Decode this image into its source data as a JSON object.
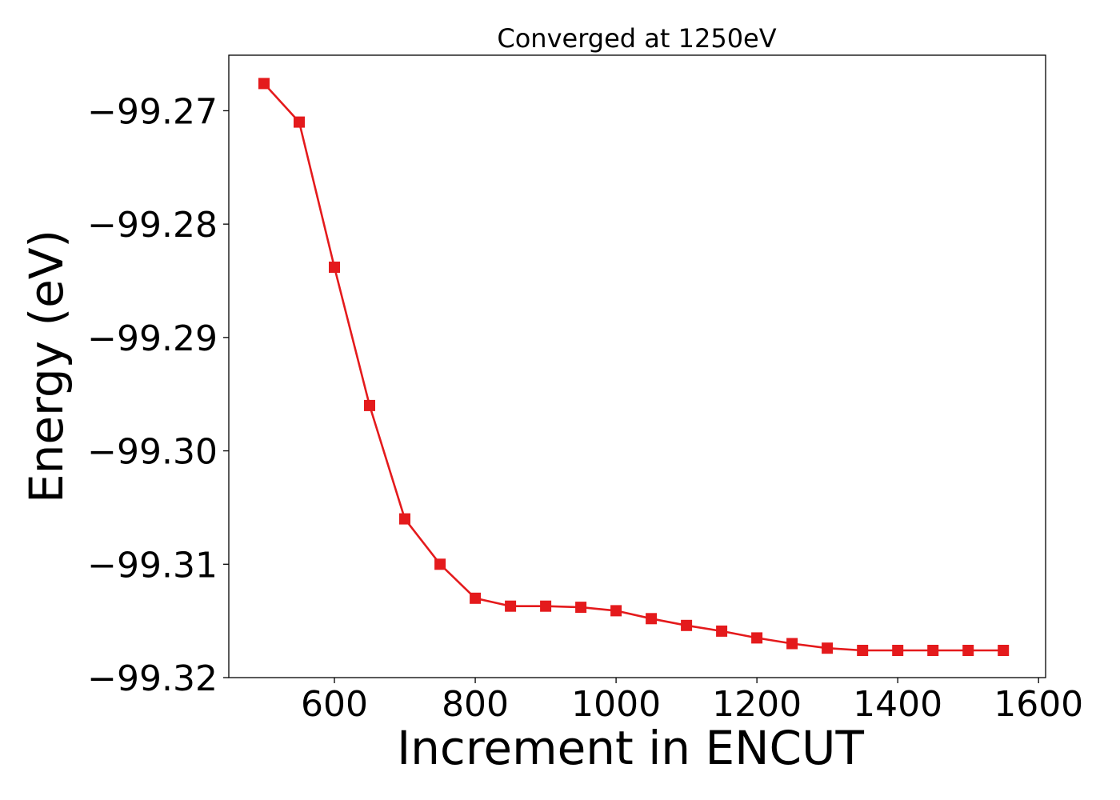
{
  "chart_data": {
    "type": "line",
    "title": "Converged at 1250eV",
    "xlabel": "Increment in ENCUT",
    "ylabel": "Energy (eV)",
    "xlim": [
      450,
      1610
    ],
    "ylim": [
      -99.32,
      -99.2651
    ],
    "x_ticks": [
      600,
      800,
      1000,
      1200,
      1400,
      1600
    ],
    "x_tick_labels": [
      "600",
      "800",
      "1000",
      "1200",
      "1400",
      "1600"
    ],
    "y_ticks": [
      -99.27,
      -99.28,
      -99.29,
      -99.3,
      -99.31,
      -99.32
    ],
    "y_tick_labels": [
      "−99.27",
      "−99.28",
      "−99.29",
      "−99.30",
      "−99.31",
      "−99.32"
    ],
    "grid": false,
    "series": [
      {
        "color": "#e41a1c",
        "marker": "square",
        "x": [
          500,
          550,
          600,
          650,
          700,
          750,
          800,
          850,
          900,
          950,
          1000,
          1050,
          1100,
          1150,
          1200,
          1250,
          1300,
          1350,
          1400,
          1450,
          1500,
          1550
        ],
        "y": [
          -99.2676,
          -99.271,
          -99.2838,
          -99.296,
          -99.306,
          -99.31,
          -99.313,
          -99.3137,
          -99.3137,
          -99.3138,
          -99.3141,
          -99.3148,
          -99.3154,
          -99.3159,
          -99.3165,
          -99.317,
          -99.3174,
          -99.3176,
          -99.3176,
          -99.3176,
          -99.3176,
          -99.3176
        ]
      }
    ]
  }
}
